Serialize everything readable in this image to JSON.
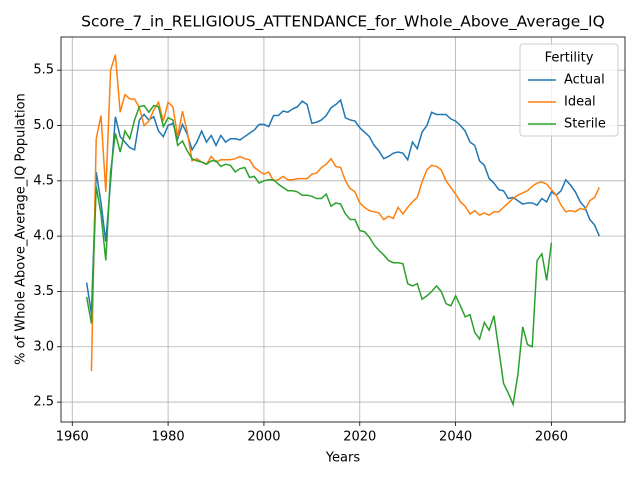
{
  "chart_data": {
    "type": "line",
    "title": "Score_7_in_RELIGIOUS_ATTENDANCE_for_Whole_Above_Average_IQ",
    "xlabel": "Years",
    "ylabel": "% of Whole Above_Average_IQ Population",
    "legend_title": "Fertility",
    "legend": "upper right",
    "grid": true,
    "x": [
      1963,
      1964,
      1965,
      1966,
      1967,
      1968,
      1969,
      1970,
      1971,
      1972,
      1973,
      1974,
      1975,
      1976,
      1977,
      1978,
      1979,
      1980,
      1981,
      1982,
      1983,
      1984,
      1985,
      1986,
      1987,
      1988,
      1989,
      1990,
      1991,
      1992,
      1993,
      1994,
      1995,
      1996,
      1997,
      1998,
      1999,
      2000,
      2001,
      2002,
      2003,
      2004,
      2005,
      2006,
      2007,
      2008,
      2009,
      2010,
      2011,
      2012,
      2013,
      2014,
      2015,
      2016,
      2017,
      2018,
      2019,
      2020,
      2021,
      2022,
      2023,
      2024,
      2025,
      2026,
      2027,
      2028,
      2029,
      2030,
      2031,
      2032,
      2033,
      2034,
      2035,
      2036,
      2037,
      2038,
      2039,
      2040,
      2041,
      2042,
      2043,
      2044,
      2045,
      2046,
      2047,
      2048,
      2049,
      2050,
      2051,
      2052,
      2053,
      2054,
      2055,
      2056,
      2057,
      2058,
      2059,
      2060,
      2061,
      2062,
      2063,
      2064,
      2065,
      2066,
      2067,
      2068,
      2069,
      2070
    ],
    "series": [
      {
        "name": "Actual",
        "color": "#1f77b4",
        "values": [
          3.58,
          3.3,
          4.58,
          4.3,
          3.95,
          4.5,
          5.08,
          4.9,
          4.85,
          4.8,
          4.78,
          5.05,
          5.1,
          5.05,
          5.08,
          4.95,
          4.9,
          5.0,
          5.02,
          4.88,
          5.01,
          4.92,
          4.78,
          4.85,
          4.95,
          4.85,
          4.91,
          4.82,
          4.91,
          4.85,
          4.88,
          4.88,
          4.87,
          4.9,
          4.93,
          4.96,
          5.01,
          5.01,
          4.99,
          5.09,
          5.09,
          5.13,
          5.12,
          5.15,
          5.17,
          5.22,
          5.19,
          5.02,
          5.03,
          5.05,
          5.09,
          5.16,
          5.19,
          5.23,
          5.07,
          5.05,
          5.04,
          4.98,
          4.94,
          4.9,
          4.82,
          4.77,
          4.7,
          4.72,
          4.75,
          4.76,
          4.75,
          4.69,
          4.85,
          4.79,
          4.94,
          5.0,
          5.12,
          5.1,
          5.1,
          5.1,
          5.06,
          5.04,
          5.0,
          4.95,
          4.85,
          4.82,
          4.68,
          4.64,
          4.52,
          4.48,
          4.42,
          4.41,
          4.34,
          4.35,
          4.32,
          4.29,
          4.3,
          4.3,
          4.28,
          4.34,
          4.31,
          4.4,
          4.37,
          4.41,
          4.51,
          4.46,
          4.4,
          4.31,
          4.26,
          4.15,
          4.1,
          4.0
        ]
      },
      {
        "name": "Ideal",
        "color": "#ff7f0e",
        "values": [
          null,
          2.78,
          4.88,
          5.09,
          4.4,
          5.5,
          5.64,
          5.12,
          5.28,
          5.24,
          5.24,
          5.16,
          5.0,
          5.04,
          5.14,
          5.21,
          5.04,
          5.21,
          5.17,
          4.9,
          5.13,
          4.94,
          4.68,
          4.7,
          4.67,
          4.65,
          4.72,
          4.67,
          4.69,
          4.69,
          4.69,
          4.7,
          4.72,
          4.7,
          4.69,
          4.62,
          4.59,
          4.56,
          4.58,
          4.5,
          4.51,
          4.54,
          4.51,
          4.51,
          4.52,
          4.52,
          4.52,
          4.56,
          4.57,
          4.62,
          4.65,
          4.7,
          4.63,
          4.62,
          4.5,
          4.43,
          4.4,
          4.3,
          4.26,
          4.23,
          4.22,
          4.21,
          4.15,
          4.18,
          4.16,
          4.26,
          4.2,
          4.26,
          4.31,
          4.35,
          4.49,
          4.6,
          4.64,
          4.63,
          4.6,
          4.5,
          4.44,
          4.38,
          4.31,
          4.27,
          4.2,
          4.23,
          4.19,
          4.21,
          4.19,
          4.22,
          4.22,
          4.26,
          4.3,
          4.34,
          4.37,
          4.39,
          4.41,
          4.45,
          4.48,
          4.49,
          4.47,
          4.42,
          4.37,
          4.28,
          4.22,
          4.23,
          4.22,
          4.25,
          4.24,
          4.32,
          4.35,
          4.44
        ]
      },
      {
        "name": "Sterile",
        "color": "#2ca02c",
        "values": [
          3.45,
          3.21,
          4.45,
          4.2,
          3.78,
          4.58,
          4.93,
          4.76,
          4.95,
          4.88,
          5.05,
          5.17,
          5.18,
          5.12,
          5.18,
          5.17,
          4.99,
          5.07,
          5.05,
          4.82,
          4.86,
          4.77,
          4.7,
          4.68,
          4.67,
          4.65,
          4.68,
          4.68,
          4.63,
          4.65,
          4.64,
          4.58,
          4.61,
          4.62,
          4.53,
          4.54,
          4.48,
          4.5,
          4.51,
          4.51,
          4.47,
          4.44,
          4.41,
          4.41,
          4.4,
          4.37,
          4.37,
          4.36,
          4.34,
          4.34,
          4.38,
          4.27,
          4.3,
          4.29,
          4.2,
          4.15,
          4.15,
          4.05,
          4.04,
          3.99,
          3.92,
          3.87,
          3.83,
          3.78,
          3.76,
          3.76,
          3.75,
          3.57,
          3.55,
          3.57,
          3.43,
          3.46,
          3.5,
          3.55,
          3.5,
          3.39,
          3.37,
          3.46,
          3.37,
          3.27,
          3.29,
          3.13,
          3.07,
          3.22,
          3.15,
          3.28,
          2.98,
          2.67,
          2.58,
          2.48,
          2.75,
          3.18,
          3.02,
          3.0,
          3.78,
          3.84,
          3.6,
          3.94,
          null,
          null,
          null,
          null,
          null,
          null,
          null,
          null,
          null,
          null
        ]
      }
    ],
    "xlim": [
      1957.65,
      2075.35
    ],
    "xticks": [
      1960,
      1980,
      2000,
      2020,
      2040,
      2060
    ],
    "ylim": [
      2.32,
      5.8
    ],
    "yticks": [
      2.5,
      {
        "value": 3,
        "label": "3.0"
      },
      3.5,
      {
        "value": 4,
        "label": "4.0"
      },
      4.5,
      {
        "value": 5,
        "label": "5.0"
      },
      5.5
    ]
  }
}
